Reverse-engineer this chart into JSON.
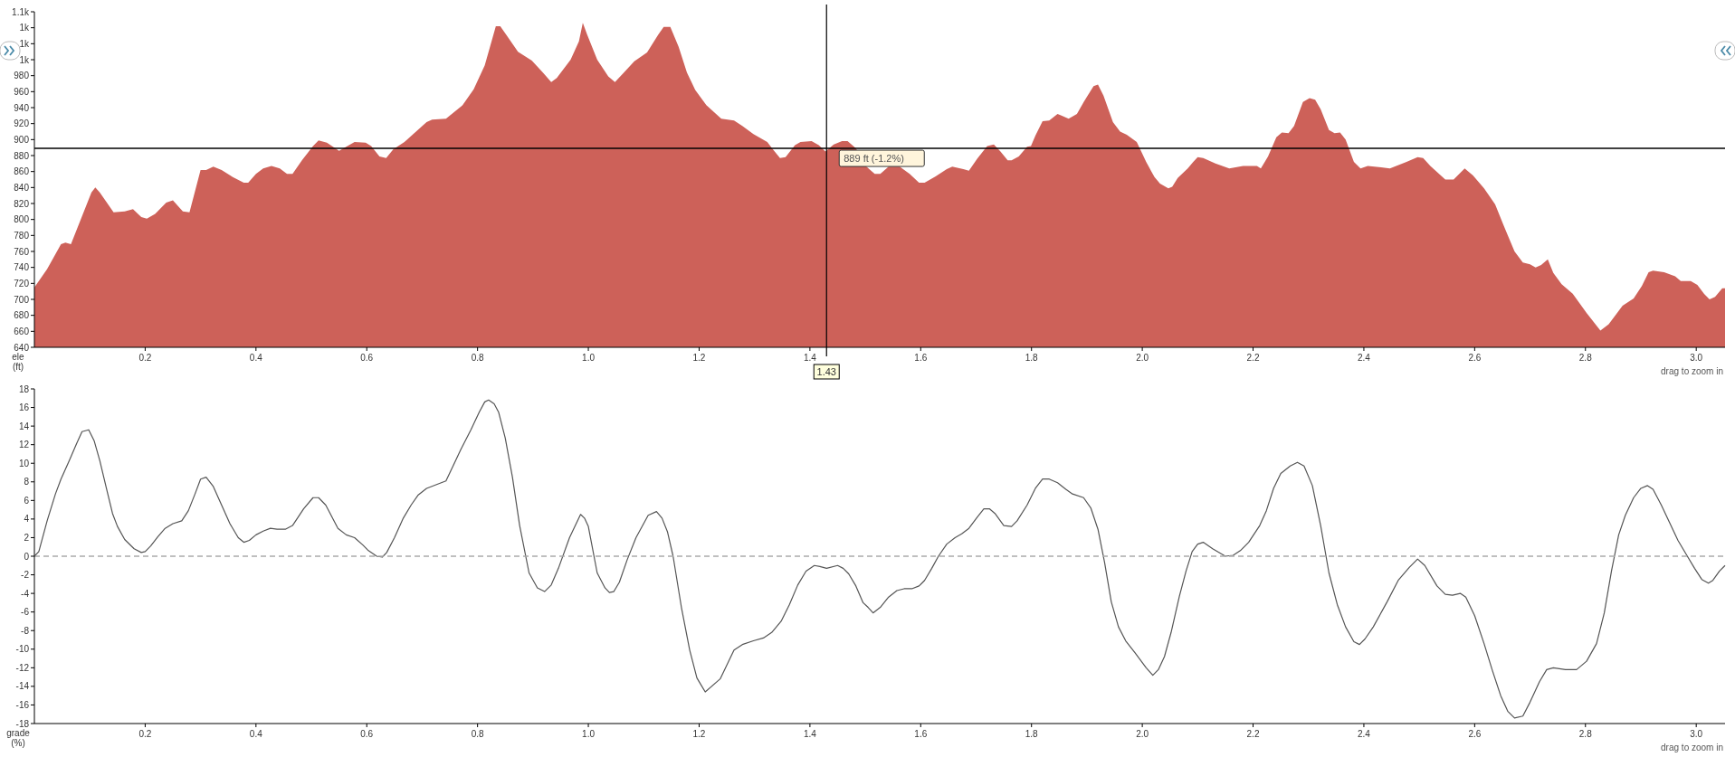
{
  "chart_data": [
    {
      "type": "area",
      "ylabel": "ele (ft)",
      "xlim": [
        0,
        3.052
      ],
      "ylim": [
        640,
        1060
      ],
      "xticks": [
        0.2,
        0.4,
        0.6,
        0.8,
        {
          "value": 1,
          "label": "1.0"
        },
        1.2,
        1.4,
        1.6,
        1.8,
        {
          "value": 2,
          "label": "2.0"
        },
        2.2,
        2.4,
        2.6,
        2.8,
        {
          "value": 3,
          "label": "3.0"
        }
      ],
      "yticks": [
        640,
        660,
        680,
        700,
        720,
        740,
        760,
        780,
        800,
        820,
        840,
        860,
        880,
        900,
        920,
        940,
        960,
        980,
        {
          "value": 1000,
          "label": "1k"
        },
        {
          "value": 1020,
          "label": "1k"
        },
        {
          "value": 1040,
          "label": "1k"
        },
        {
          "value": 1060,
          "label": "1.1k"
        }
      ],
      "grid": false,
      "ref_lines": [
        {
          "axis": "x",
          "value": 1.43,
          "label": "1.43",
          "color": "#000000"
        },
        {
          "axis": "y",
          "value": 889,
          "label": "889 ft (-1.2%)",
          "color": "#000000"
        }
      ],
      "annotations": [
        "drag to zoom in"
      ],
      "series": [
        {
          "color": "#cd6159",
          "x": [
            0,
            0.023,
            0.048,
            0.056,
            0.066,
            0.103,
            0.11,
            0.118,
            0.143,
            0.163,
            0.178,
            0.193,
            0.203,
            0.218,
            0.238,
            0.25,
            0.268,
            0.28,
            0.3,
            0.31,
            0.323,
            0.338,
            0.358,
            0.378,
            0.386,
            0.4,
            0.413,
            0.428,
            0.443,
            0.456,
            0.466,
            0.483,
            0.503,
            0.513,
            0.528,
            0.55,
            0.578,
            0.598,
            0.608,
            0.623,
            0.635,
            0.648,
            0.668,
            0.708,
            0.718,
            0.743,
            0.773,
            0.793,
            0.813,
            0.833,
            0.841,
            0.853,
            0.873,
            0.898,
            0.918,
            0.933,
            0.943,
            0.968,
            0.983,
            0.99,
            0.998,
            1.016,
            1.036,
            1.048,
            1.063,
            1.083,
            1.106,
            1.126,
            1.136,
            1.148,
            1.163,
            1.178,
            1.193,
            1.213,
            1.24,
            1.263,
            1.278,
            1.298,
            1.323,
            1.333,
            1.346,
            1.356,
            1.373,
            1.383,
            1.403,
            1.416,
            1.428,
            1.443,
            1.458,
            1.468,
            1.483,
            1.502,
            1.517,
            1.527,
            1.542,
            1.562,
            1.58,
            1.597,
            1.607,
            1.627,
            1.647,
            1.657,
            1.677,
            1.687,
            1.702,
            1.72,
            1.732,
            1.744,
            1.757,
            1.764,
            1.777,
            1.792,
            1.799,
            1.807,
            1.82,
            1.832,
            1.847,
            1.854,
            1.867,
            1.882,
            1.895,
            1.912,
            1.92,
            1.93,
            1.947,
            1.96,
            1.972,
            1.99,
            2.007,
            2.022,
            2.032,
            2.047,
            2.054,
            2.064,
            2.082,
            2.092,
            2.1,
            2.11,
            2.132,
            2.157,
            2.182,
            2.207,
            2.214,
            2.227,
            2.242,
            2.252,
            2.264,
            2.274,
            2.29,
            2.302,
            2.312,
            2.322,
            2.337,
            2.347,
            2.357,
            2.367,
            2.382,
            2.394,
            2.407,
            2.447,
            2.477,
            2.497,
            2.507,
            2.52,
            2.547,
            2.562,
            2.582,
            2.597,
            2.617,
            2.637,
            2.652,
            2.672,
            2.687,
            2.7,
            2.71,
            2.72,
            2.732,
            2.742,
            2.757,
            2.777,
            2.802,
            2.827,
            2.842,
            2.867,
            2.887,
            2.902,
            2.914,
            2.922,
            2.942,
            2.962,
            2.972,
            2.99,
            3.002,
            3.014,
            3.024,
            3.034,
            3.047,
            3.052
          ],
          "values": [
            715,
            738,
            769,
            771,
            769,
            834,
            840,
            834,
            809,
            810,
            813,
            803,
            801,
            807,
            821,
            824,
            810,
            809,
            862,
            862,
            866,
            862,
            853,
            846,
            846,
            857,
            864,
            867,
            864,
            857,
            857,
            874,
            892,
            899,
            896,
            886,
            897,
            896,
            892,
            879,
            877,
            888,
            897,
            922,
            925,
            926,
            943,
            963,
            993,
            1042,
            1042,
            1030,
            1010,
            999,
            984,
            972,
            977,
            1000,
            1023,
            1046,
            1031,
            1000,
            979,
            972,
            983,
            998,
            1009,
            1031,
            1041,
            1041,
            1016,
            984,
            962,
            943,
            926,
            924,
            917,
            907,
            897,
            888,
            877,
            878,
            893,
            897,
            898,
            893,
            885,
            894,
            898,
            898,
            889,
            866,
            857,
            857,
            866,
            866,
            857,
            846,
            846,
            854,
            863,
            866,
            863,
            861,
            876,
            892,
            894,
            885,
            874,
            874,
            879,
            891,
            892,
            905,
            923,
            924,
            932,
            930,
            926,
            932,
            948,
            967,
            969,
            955,
            922,
            910,
            906,
            897,
            872,
            853,
            845,
            839,
            841,
            852,
            864,
            872,
            878,
            877,
            870,
            864,
            867,
            867,
            864,
            879,
            903,
            909,
            908,
            917,
            947,
            952,
            950,
            938,
            912,
            908,
            909,
            900,
            872,
            864,
            867,
            864,
            872,
            878,
            877,
            867,
            850,
            850,
            864,
            855,
            839,
            819,
            793,
            760,
            746,
            744,
            740,
            743,
            750,
            733,
            719,
            707,
            683,
            661,
            669,
            692,
            701,
            717,
            734,
            736,
            734,
            729,
            723,
            723,
            718,
            707,
            700,
            703,
            714,
            714
          ]
        }
      ]
    },
    {
      "type": "line",
      "ylabel": "grade (%)",
      "xlim": [
        0,
        3.052
      ],
      "ylim": [
        -18,
        18
      ],
      "xticks": [
        0.2,
        0.4,
        0.6,
        0.8,
        {
          "value": 1,
          "label": "1.0"
        },
        1.2,
        1.4,
        1.6,
        1.8,
        {
          "value": 2,
          "label": "2.0"
        },
        2.2,
        2.4,
        2.6,
        2.8,
        {
          "value": 3,
          "label": "3.0"
        }
      ],
      "yticks": [
        -18,
        -16,
        -14,
        -12,
        -10,
        -8,
        -6,
        -4,
        -2,
        0,
        2,
        4,
        6,
        8,
        10,
        12,
        14,
        16,
        18
      ],
      "grid": false,
      "ref_lines": [
        {
          "axis": "y",
          "value": 0,
          "color": "#aaaaaa",
          "line_style": "dashed"
        }
      ],
      "annotations": [
        "drag to zoom in"
      ],
      "series": [
        {
          "color": "#555555",
          "x": [
            0,
            0.008,
            0.023,
            0.038,
            0.048,
            0.063,
            0.076,
            0.086,
            0.098,
            0.108,
            0.118,
            0.13,
            0.141,
            0.15,
            0.163,
            0.18,
            0.193,
            0.2,
            0.21,
            0.223,
            0.236,
            0.25,
            0.266,
            0.278,
            0.29,
            0.3,
            0.31,
            0.323,
            0.338,
            0.353,
            0.368,
            0.378,
            0.388,
            0.4,
            0.413,
            0.426,
            0.438,
            0.453,
            0.466,
            0.486,
            0.503,
            0.513,
            0.526,
            0.548,
            0.563,
            0.578,
            0.593,
            0.603,
            0.618,
            0.628,
            0.636,
            0.65,
            0.666,
            0.68,
            0.693,
            0.708,
            0.743,
            0.77,
            0.788,
            0.803,
            0.813,
            0.82,
            0.83,
            0.838,
            0.85,
            0.863,
            0.876,
            0.893,
            0.908,
            0.921,
            0.933,
            0.946,
            0.966,
            0.986,
            0.993,
            1.0,
            1.016,
            1.03,
            1.038,
            1.046,
            1.056,
            1.07,
            1.086,
            1.108,
            1.123,
            1.133,
            1.143,
            1.153,
            1.168,
            1.183,
            1.196,
            1.211,
            1.238,
            1.263,
            1.278,
            1.298,
            1.316,
            1.331,
            1.348,
            1.363,
            1.378,
            1.393,
            1.408,
            1.418,
            1.43,
            1.45,
            1.46,
            1.47,
            1.483,
            1.496,
            1.505,
            1.514,
            1.527,
            1.542,
            1.557,
            1.57,
            1.584,
            1.597,
            1.607,
            1.62,
            1.632,
            1.647,
            1.662,
            1.674,
            1.687,
            1.702,
            1.714,
            1.724,
            1.734,
            1.75,
            1.764,
            1.774,
            1.792,
            1.807,
            1.82,
            1.832,
            1.847,
            1.862,
            1.874,
            1.894,
            1.907,
            1.92,
            1.932,
            1.944,
            1.957,
            1.97,
            1.987,
            2.007,
            2.019,
            2.029,
            2.04,
            2.052,
            2.067,
            2.079,
            2.09,
            2.1,
            2.11,
            2.127,
            2.15,
            2.164,
            2.177,
            2.192,
            2.212,
            2.224,
            2.237,
            2.25,
            2.267,
            2.28,
            2.292,
            2.307,
            2.322,
            2.337,
            2.352,
            2.367,
            2.382,
            2.392,
            2.402,
            2.417,
            2.442,
            2.462,
            2.482,
            2.497,
            2.51,
            2.532,
            2.547,
            2.56,
            2.574,
            2.584,
            2.6,
            2.617,
            2.632,
            2.647,
            2.66,
            2.672,
            2.687,
            2.7,
            2.717,
            2.73,
            2.742,
            2.764,
            2.784,
            2.802,
            2.82,
            2.834,
            2.847,
            2.86,
            2.872,
            2.887,
            2.9,
            2.912,
            2.922,
            2.937,
            2.952,
            2.967,
            2.982,
            2.997,
            3.01,
            3.022,
            3.03,
            3.042,
            3.052
          ],
          "values": [
            0,
            0.5,
            3.8,
            6.7,
            8.3,
            10.3,
            12.1,
            13.4,
            13.6,
            12.4,
            10.3,
            7.3,
            4.6,
            3.2,
            1.8,
            0.8,
            0.4,
            0.5,
            1.1,
            2.1,
            3.0,
            3.5,
            3.8,
            4.9,
            6.7,
            8.3,
            8.5,
            7.5,
            5.5,
            3.5,
            2.0,
            1.5,
            1.7,
            2.3,
            2.7,
            3.0,
            2.9,
            2.9,
            3.3,
            5.1,
            6.3,
            6.3,
            5.5,
            3.0,
            2.3,
            2.0,
            1.2,
            0.6,
            0,
            -0.1,
            0.4,
            2.0,
            4.1,
            5.5,
            6.6,
            7.3,
            8.1,
            11.5,
            13.6,
            15.5,
            16.6,
            16.8,
            16.4,
            15.5,
            12.7,
            8.5,
            3.3,
            -1.8,
            -3.4,
            -3.8,
            -3.1,
            -1.3,
            2.0,
            4.5,
            4.1,
            3.2,
            -1.8,
            -3.4,
            -3.9,
            -3.8,
            -2.8,
            -0.4,
            2.0,
            4.4,
            4.8,
            4.1,
            2.6,
            0,
            -5.5,
            -10.1,
            -13.1,
            -14.6,
            -13.2,
            -10.1,
            -9.5,
            -9.1,
            -8.8,
            -8.2,
            -7.0,
            -5.2,
            -3.1,
            -1.6,
            -1.0,
            -1.1,
            -1.3,
            -1.0,
            -1.3,
            -1.9,
            -3.2,
            -5.0,
            -5.5,
            -6.1,
            -5.5,
            -4.4,
            -3.7,
            -3.5,
            -3.5,
            -3.2,
            -2.6,
            -1.3,
            0,
            1.3,
            2.0,
            2.4,
            3.0,
            4.2,
            5.1,
            5.1,
            4.6,
            3.3,
            3.2,
            3.8,
            5.5,
            7.3,
            8.3,
            8.3,
            7.9,
            7.2,
            6.7,
            6.3,
            5.2,
            2.9,
            -0.7,
            -4.9,
            -7.6,
            -9.1,
            -10.4,
            -12.0,
            -12.8,
            -12.2,
            -10.8,
            -8.2,
            -4.3,
            -1.6,
            0.5,
            1.3,
            1.5,
            0.8,
            0,
            0.1,
            0.6,
            1.5,
            3.3,
            4.9,
            7.3,
            8.9,
            9.7,
            10.1,
            9.7,
            7.6,
            3.3,
            -1.8,
            -5.2,
            -7.6,
            -9.2,
            -9.5,
            -8.9,
            -7.6,
            -4.9,
            -2.6,
            -1.2,
            -0.3,
            -1.0,
            -3.2,
            -4.1,
            -4.2,
            -4.0,
            -4.4,
            -6.4,
            -9.4,
            -12.3,
            -15.0,
            -16.7,
            -17.4,
            -17.2,
            -15.7,
            -13.5,
            -12.2,
            -12.0,
            -12.2,
            -12.2,
            -11.3,
            -9.4,
            -6.1,
            -1.6,
            2.3,
            4.4,
            6.3,
            7.3,
            7.6,
            7.2,
            5.5,
            3.6,
            1.7,
            0.2,
            -1.3,
            -2.5,
            -2.9,
            -2.6,
            -1.6,
            -1.0
          ]
        }
      ]
    }
  ]
}
